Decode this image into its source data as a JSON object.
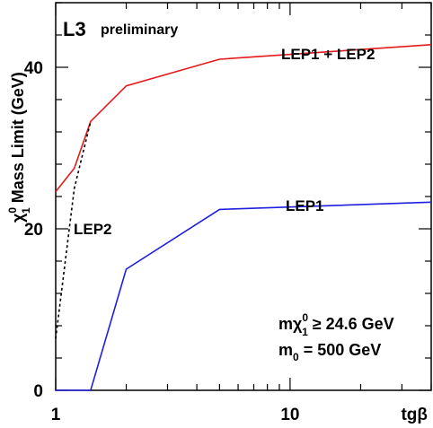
{
  "chart_data": {
    "type": "line",
    "experiment": "L3",
    "status": "preliminary",
    "xlabel": "tgβ",
    "ylabel_particle": "χ",
    "ylabel_sup": "0",
    "ylabel_sub": "1",
    "ylabel_text": "Mass Limit (GeV)",
    "x_scale": "log",
    "xlim": [
      1,
      40
    ],
    "ylim": [
      0,
      48
    ],
    "x_ticks": [
      1,
      10
    ],
    "y_ticks": [
      0,
      20,
      40
    ],
    "series": [
      {
        "name": "LEP1 + LEP2",
        "color": "#e41a1c",
        "style": "solid",
        "x": [
          1.0,
          1.2,
          1.41,
          2.0,
          5.0,
          40.0
        ],
        "y": [
          24.6,
          27.5,
          33.3,
          37.7,
          41.0,
          42.8
        ]
      },
      {
        "name": "LEP1",
        "color": "#1f1fe0",
        "style": "solid",
        "x": [
          1.0,
          1.41,
          2.0,
          5.0,
          40.0
        ],
        "y": [
          0.0,
          0.0,
          15.0,
          22.4,
          23.3
        ]
      },
      {
        "name": "LEP2",
        "color": "#000000",
        "style": "dotted",
        "x": [
          1.0,
          1.2,
          1.41
        ],
        "y": [
          6.4,
          25.0,
          33.3
        ]
      }
    ],
    "annotation_line1_prefix": "mχ",
    "annotation_line1_sup": "0",
    "annotation_line1_sub": "1",
    "annotation_line1_suffix": " ≥ 24.6 GeV",
    "annotation_line2_prefix": "m",
    "annotation_line2_sub": "0",
    "annotation_line2_suffix": " = 500 GeV"
  }
}
